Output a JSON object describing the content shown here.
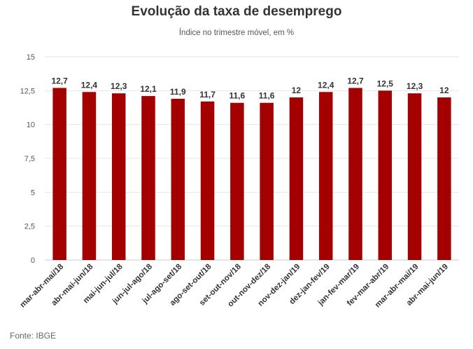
{
  "header": {
    "title": "Evolução da taxa de desemprego",
    "subtitle": "Índice no trimestre móvel, em %"
  },
  "footer": {
    "source": "Fonte: IBGE"
  },
  "colors": {
    "bar": "#a50000",
    "grid": "#e6e6e6",
    "axis": "#cccccc"
  },
  "chart_data": {
    "type": "bar",
    "title": "Evolução da taxa de desemprego",
    "subtitle": "Índice no trimestre móvel, em %",
    "xlabel": "",
    "ylabel": "",
    "ylim": [
      0,
      15
    ],
    "yticks": [
      0,
      2.5,
      5,
      7.5,
      10,
      12.5,
      15
    ],
    "ytick_labels": [
      "0",
      "2,5",
      "5",
      "7,5",
      "10",
      "12,5",
      "15"
    ],
    "grid": true,
    "legend": "none",
    "categories": [
      "mar-abr-mai/18",
      "abr-mai-jun/18",
      "mai-jun-jul/18",
      "jun-jul-ago/18",
      "jul-ago-set/18",
      "ago-set-out/18",
      "set-out-nov/18",
      "out-nov-dez/18",
      "nov-dez-jan/19",
      "dez-jan-fev/19",
      "jan-fev-mar/19",
      "fev-mar-abr/19",
      "mar-abr-mai/19",
      "abr-mai-jun/19"
    ],
    "values": [
      12.7,
      12.4,
      12.3,
      12.1,
      11.9,
      11.7,
      11.6,
      11.6,
      12,
      12.4,
      12.7,
      12.5,
      12.3,
      12
    ],
    "value_labels": [
      "12,7",
      "12,4",
      "12,3",
      "12,1",
      "11,9",
      "11,7",
      "11,6",
      "11,6",
      "12",
      "12,4",
      "12,7",
      "12,5",
      "12,3",
      "12"
    ]
  }
}
